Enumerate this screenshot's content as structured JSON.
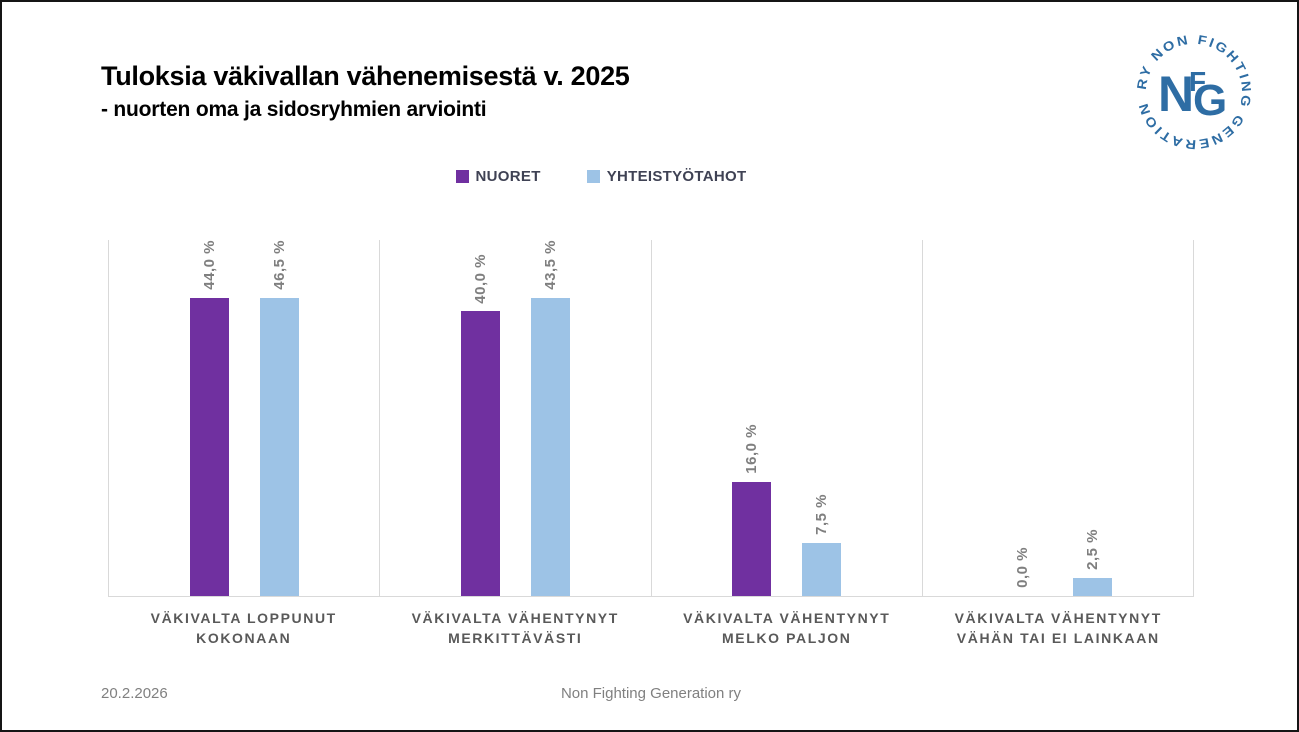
{
  "slide": {
    "title": "Tuloksia väkivallan vähenemisestä v. 2025",
    "subtitle": "- nuorten oma ja sidosryhmien arviointi",
    "footer_date": "20.2.2026",
    "footer_org": "Non Fighting Generation ry"
  },
  "logo": {
    "ring_text": "RY  NON  FIGHTING  GENERATION",
    "monogram": "NFG",
    "color": "#2E6DA4"
  },
  "chart_data": {
    "type": "bar",
    "title": "Tuloksia väkivallan vähenemisestä v. 2025 - nuorten oma ja sidosryhmien arviointi",
    "categories": [
      "VÄKIVALTA LOPPUNUT KOKONAAN",
      "VÄKIVALTA VÄHENTYNYT MERKITTÄVÄSTI",
      "VÄKIVALTA VÄHENTYNYT MELKO PALJON",
      "VÄKIVALTA VÄHENTYNYT VÄHÄN TAI EI LAINKAAN"
    ],
    "categories_lines": [
      [
        "VÄKIVALTA LOPPUNUT",
        "KOKONAAN"
      ],
      [
        "VÄKIVALTA VÄHENTYNYT",
        "MERKITTÄVÄSTI"
      ],
      [
        "VÄKIVALTA VÄHENTYNYT",
        "MELKO PALJON"
      ],
      [
        "VÄKIVALTA VÄHENTYNYT",
        "VÄHÄN TAI EI LAINKAAN"
      ]
    ],
    "series": [
      {
        "name": "NUORET",
        "color": "#7030A0",
        "values": [
          44.0,
          40.0,
          16.0,
          0.0
        ],
        "labels": [
          "44,0 %",
          "40,0 %",
          "16,0 %",
          "0,0 %"
        ]
      },
      {
        "name": "YHTEISTYÖTAHOT",
        "color": "#9DC3E6",
        "values": [
          46.5,
          43.5,
          7.5,
          2.5
        ],
        "labels": [
          "46,5 %",
          "43,5 %",
          "7,5 %",
          "2,5 %"
        ]
      }
    ],
    "ylim": [
      0,
      50
    ],
    "xlabel": "",
    "ylabel": "",
    "grid": "vertical-category-separators",
    "legend_position": "top-center",
    "value_label_color": "#7F7F7F",
    "category_label_color": "#595959",
    "axis_line_color": "#D9D9D9"
  }
}
